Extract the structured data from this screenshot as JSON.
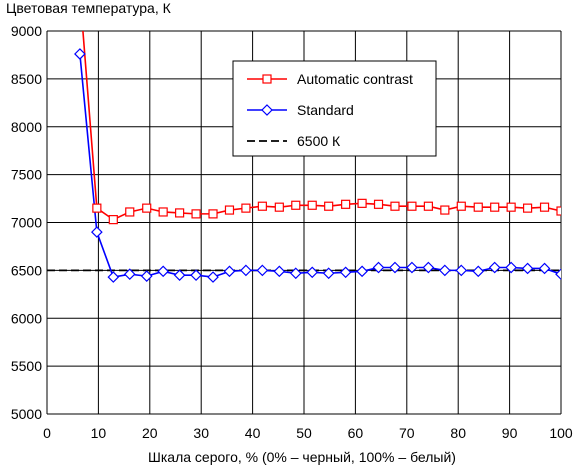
{
  "chart_data": {
    "type": "line",
    "ylabel": "Цветовая температура, К",
    "xlabel": "Шкала серого, % (0% – черный, 100% – белый)",
    "xlim": [
      0,
      100
    ],
    "ylim": [
      5000,
      9000
    ],
    "x_ticks": [
      0,
      10,
      20,
      30,
      40,
      50,
      60,
      70,
      80,
      90,
      100
    ],
    "y_ticks": [
      5000,
      5500,
      6000,
      6500,
      7000,
      7500,
      8000,
      8500,
      9000
    ],
    "grid": true,
    "legend_position": "top-right",
    "series": [
      {
        "name": "Automatic contrast",
        "color": "#ff0000",
        "marker": "square",
        "x": [
          6.4,
          9.7,
          12.9,
          16.1,
          19.4,
          22.6,
          25.8,
          29.0,
          32.3,
          35.5,
          38.7,
          41.9,
          45.2,
          48.4,
          51.6,
          54.8,
          58.1,
          61.3,
          64.5,
          67.7,
          71.0,
          74.2,
          77.4,
          80.6,
          83.9,
          87.1,
          90.3,
          93.5,
          96.8,
          100
        ],
        "values": [
          9400,
          7150,
          7030,
          7110,
          7150,
          7110,
          7100,
          7090,
          7090,
          7130,
          7150,
          7170,
          7160,
          7180,
          7180,
          7170,
          7190,
          7200,
          7190,
          7170,
          7170,
          7170,
          7130,
          7170,
          7160,
          7160,
          7160,
          7150,
          7160,
          7120
        ]
      },
      {
        "name": "Standard",
        "color": "#0000ff",
        "marker": "diamond",
        "x": [
          6.4,
          9.7,
          12.9,
          16.1,
          19.4,
          22.6,
          25.8,
          29.0,
          32.3,
          35.5,
          38.7,
          41.9,
          45.2,
          48.4,
          51.6,
          54.8,
          58.1,
          61.3,
          64.5,
          67.7,
          71.0,
          74.2,
          77.4,
          80.6,
          83.9,
          87.1,
          90.3,
          93.5,
          96.8,
          100
        ],
        "values": [
          8760,
          6900,
          6430,
          6460,
          6440,
          6490,
          6450,
          6450,
          6430,
          6490,
          6500,
          6500,
          6490,
          6470,
          6480,
          6470,
          6480,
          6490,
          6530,
          6530,
          6530,
          6530,
          6500,
          6500,
          6490,
          6530,
          6530,
          6520,
          6520,
          6460
        ]
      },
      {
        "name": "6500 К",
        "color": "#000000",
        "style": "dashed",
        "x": [
          0,
          100
        ],
        "values": [
          6500,
          6500
        ]
      }
    ]
  }
}
